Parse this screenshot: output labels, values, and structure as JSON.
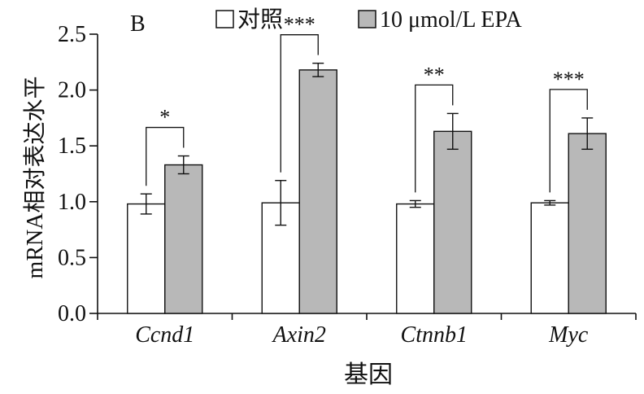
{
  "panel_label": "B",
  "chart_data": {
    "type": "bar",
    "title": "",
    "xlabel": "基因",
    "ylabel": "mRNA相对表达水平",
    "ylim": [
      0,
      2.5
    ],
    "yticks": [
      "0.0",
      "0.5",
      "1.0",
      "1.5",
      "2.0",
      "2.5"
    ],
    "categories": [
      "Ccnd1",
      "Axin2",
      "Ctnnb1",
      "Myc"
    ],
    "series": [
      {
        "name": "对照",
        "values": [
          0.98,
          0.99,
          0.98,
          0.99
        ],
        "errors": [
          0.09,
          0.2,
          0.03,
          0.02
        ],
        "color": "#ffffff"
      },
      {
        "name": "10 μmol/L EPA",
        "values": [
          1.33,
          2.18,
          1.63,
          1.61
        ],
        "errors": [
          0.08,
          0.06,
          0.16,
          0.14
        ],
        "color": "#b8b8b8"
      }
    ],
    "significance": [
      "*",
      "***",
      "**",
      "***"
    ],
    "legend_position": "top",
    "grid": false
  }
}
